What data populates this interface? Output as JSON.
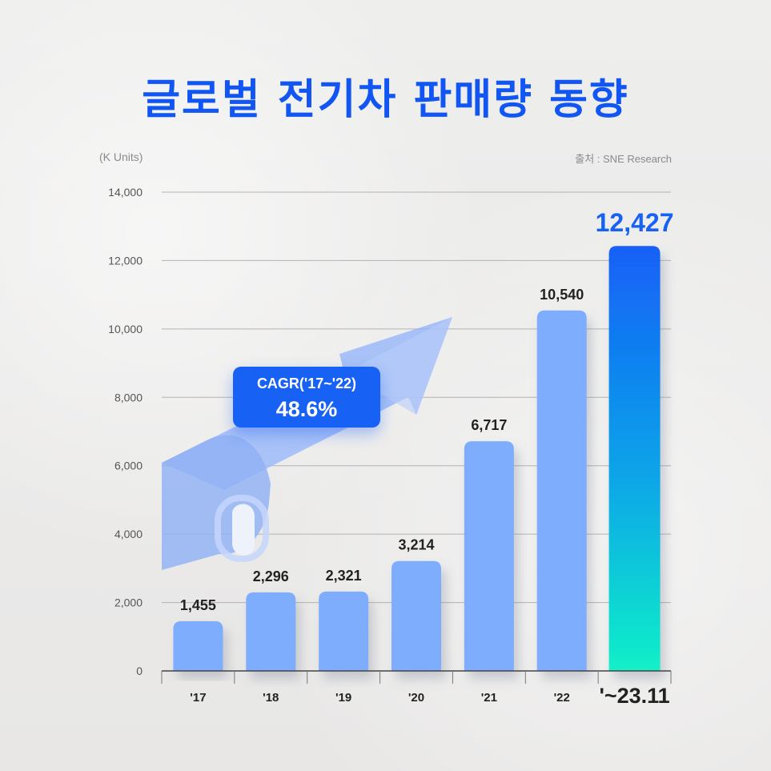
{
  "title": "글로벌 전기차 판매량 동향",
  "unit": "(K Units)",
  "source": "출처 : SNE Research",
  "cagr": {
    "label": "CAGR('17~'22)",
    "value": "48.6%"
  },
  "colors": {
    "title": "#1156f2",
    "bar": "#7eadfd",
    "highlight_top": "#1560f7",
    "highlight_bottom": "#12f0c8",
    "highlight_label": "#1761f5",
    "cagr_box": "#1761f5"
  },
  "chart_data": {
    "type": "bar",
    "title": "글로벌 전기차 판매량 동향",
    "ylabel": "(K Units)",
    "xlabel": "",
    "categories": [
      "'17",
      "'18",
      "'19",
      "'20",
      "'21",
      "'22",
      "'~23.11"
    ],
    "values": [
      1455,
      2296,
      2321,
      3214,
      6717,
      10540,
      12427
    ],
    "value_labels": [
      "1,455",
      "2,296",
      "2,321",
      "3,214",
      "6,717",
      "10,540",
      "12,427"
    ],
    "highlight_index": 6,
    "ylim": [
      0,
      14000
    ],
    "yticks": [
      0,
      2000,
      4000,
      6000,
      8000,
      10000,
      12000,
      14000
    ],
    "ytick_labels": [
      "0",
      "2,000",
      "4,000",
      "6,000",
      "8,000",
      "10,000",
      "12,000",
      "14,000"
    ],
    "grid": true,
    "annotation": "CAGR('17~'22) 48.6%"
  }
}
